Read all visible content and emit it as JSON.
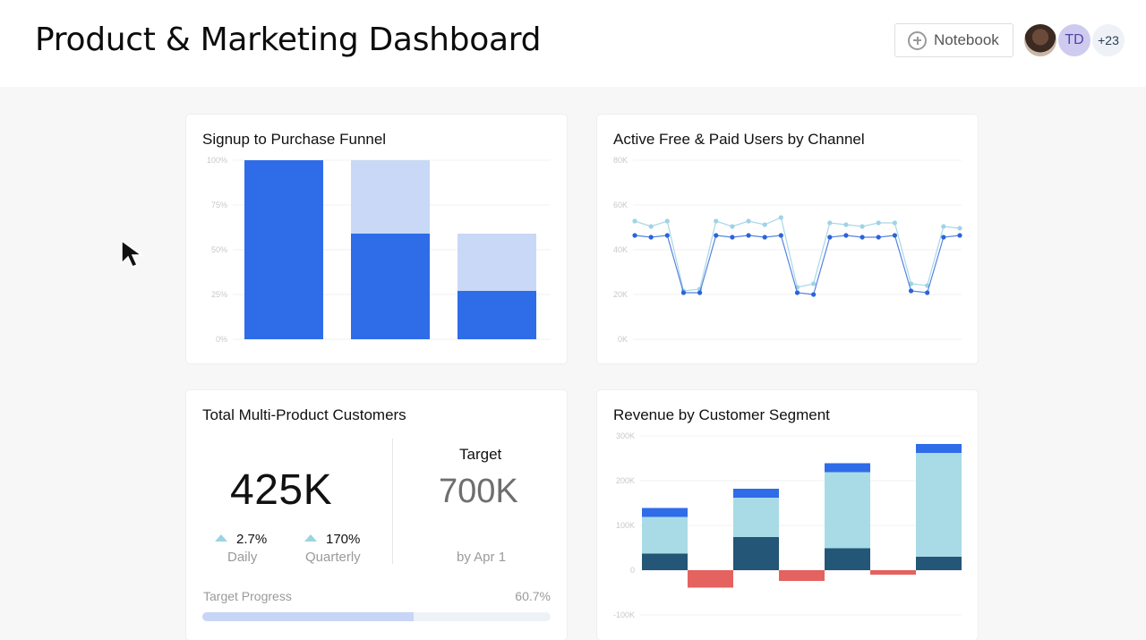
{
  "header": {
    "title": "Product & Marketing Dashboard",
    "notebook_label": "Notebook",
    "avatars": {
      "initials": "TD",
      "more": "+23"
    }
  },
  "icons": {
    "notebook": "plus-circle-icon",
    "cursor": "mouse-pointer-icon"
  },
  "funnel": {
    "title": "Signup to Purchase Funnel",
    "y_ticks": [
      "100%",
      "75%",
      "50%",
      "25%",
      "0%"
    ]
  },
  "active_users": {
    "title": "Active Free & Paid Users by Channel",
    "y_ticks": [
      "80K",
      "60K",
      "40K",
      "20K",
      "0K"
    ]
  },
  "kpi": {
    "title": "Total Multi-Product Customers",
    "value": "425K",
    "daily_delta": "2.7%",
    "daily_label": "Daily",
    "quarterly_delta": "170%",
    "quarterly_label": "Quarterly",
    "target_label": "Target",
    "target_value": "700K",
    "target_date": "by Apr 1",
    "progress_label": "Target Progress",
    "progress_pct": "60.7%",
    "progress_fraction": 0.607
  },
  "revenue": {
    "title": "Revenue by Customer Segment",
    "y_ticks": [
      "300K",
      "200K",
      "100K",
      "0",
      "-100K"
    ]
  },
  "colors": {
    "blue": "#2f6ce8",
    "light_blue": "#c9d8f6",
    "line_light": "#9fd3e6",
    "line_dark": "#2b63d9",
    "rev_top": "#2f6ce8",
    "rev_mid": "#a9dbe6",
    "rev_base": "#235677",
    "rev_negative": "#e4625f",
    "progress_fill": "#c7d6f6"
  },
  "chart_data": [
    {
      "type": "bar",
      "title": "Signup to Purchase Funnel",
      "y_ticks": [
        "100%",
        "75%",
        "50%",
        "25%",
        "0%"
      ],
      "ylim": [
        0,
        100
      ],
      "series": [
        {
          "values": [
            100,
            59,
            27
          ]
        },
        {
          "values": [
            100,
            100,
            59
          ]
        }
      ]
    },
    {
      "type": "line",
      "title": "Active Free & Paid Users by Channel",
      "y_ticks": [
        "80K",
        "60K",
        "40K",
        "20K",
        "0K"
      ],
      "ylim": [
        0,
        100
      ],
      "series": [
        {
          "values": [
            66,
            63,
            66,
            27,
            28,
            66,
            63,
            66,
            64,
            68,
            29,
            31,
            65,
            64,
            63,
            65,
            65,
            31,
            30,
            63,
            62
          ]
        },
        {
          "values": [
            58,
            57,
            58,
            26,
            26,
            58,
            57,
            58,
            57,
            58,
            26,
            25,
            57,
            58,
            57,
            57,
            58,
            27,
            26,
            57,
            58
          ]
        }
      ]
    },
    {
      "type": "bar",
      "title": "Revenue by Customer Segment",
      "y_ticks": [
        "300K",
        "200K",
        "100K",
        "0",
        "-100K"
      ],
      "ylim": [
        -100,
        300
      ],
      "series": [
        {
          "values": [
            37,
            74,
            49,
            30
          ]
        },
        {
          "values": [
            82,
            88,
            170,
            232
          ]
        },
        {
          "values": [
            20,
            20,
            20,
            20
          ]
        },
        {
          "values": [
            -39,
            0,
            -24,
            0,
            -10,
            0
          ]
        }
      ]
    }
  ]
}
